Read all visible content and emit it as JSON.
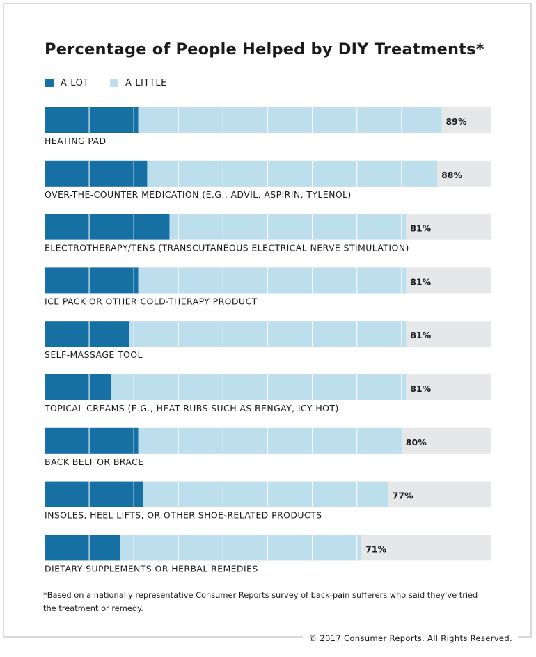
{
  "colors": {
    "a_lot": "#1670a3",
    "a_little": "#bcdeed",
    "track": "#e6e7e9"
  },
  "footnote": "*Based on a nationally representative Consumer Reports survey of back-pain sufferers who said they've tried the treatment or remedy.",
  "copyright": "© 2017 Consumer Reports. All Rights Reserved.",
  "chart_data": {
    "type": "bar",
    "orientation": "horizontal",
    "stacked": true,
    "title": "Percentage of People Helped by DIY Treatments*",
    "legend_position": "top-left",
    "xlim": [
      0,
      100
    ],
    "grid": true,
    "categories": [
      "HEATING PAD",
      "OVER-THE-COUNTER MEDICATION (E.G., ADVIL, ASPIRIN, TYLENOL)",
      "ELECTROTHERAPY/TENS (TRANSCUTANEOUS ELECTRICAL NERVE STIMULATION)",
      "ICE PACK OR OTHER COLD-THERAPY PRODUCT",
      "SELF-MASSAGE TOOL",
      "TOPICAL CREAMS (E.G., HEAT RUBS SUCH AS BENGAY, ICY HOT)",
      "BACK BELT OR BRACE",
      "INSOLES, HEEL LIFTS, OR OTHER SHOE-RELATED PRODUCTS",
      "DIETARY SUPPLEMENTS OR HERBAL REMEDIES"
    ],
    "series": [
      {
        "name": "A LOT",
        "values": [
          21,
          23,
          28,
          21,
          19,
          15,
          21,
          22,
          17
        ]
      },
      {
        "name": "A LITTLE",
        "values": [
          68,
          65,
          53,
          60,
          62,
          66,
          59,
          55,
          54
        ]
      }
    ],
    "totals": [
      89,
      88,
      81,
      81,
      81,
      81,
      80,
      77,
      71
    ],
    "total_labels": [
      "89%",
      "88%",
      "81%",
      "81%",
      "81%",
      "81%",
      "80%",
      "77%",
      "71%"
    ]
  }
}
